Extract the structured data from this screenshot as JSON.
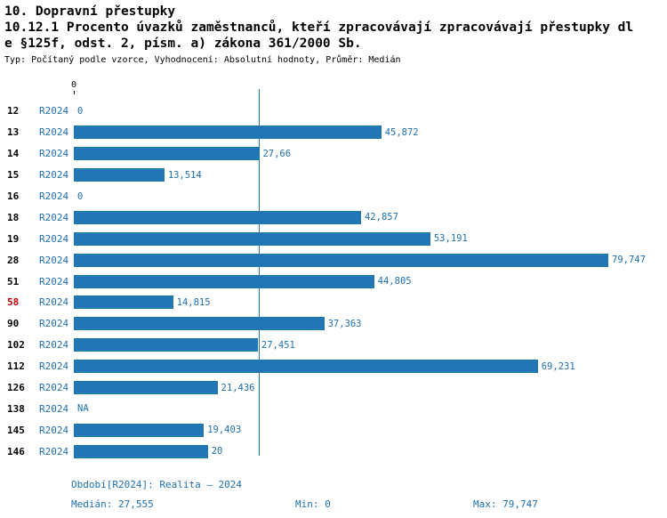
{
  "header": {
    "title": "10. Dopravní přestupky",
    "subtitle_line1": "10.12.1 Procento úvazků zaměstnanců, kteří zpracovávají zpracovávají přestupky dl",
    "subtitle_line2": "e §125f, odst. 2, písm. a) zákona 361/2000 Sb.",
    "meta": "Typ: Počítaný podle vzorce, Vyhodnocení: Absolutní hodnoty, Průměr: Medián"
  },
  "chart_data": {
    "type": "bar",
    "orientation": "horizontal",
    "title": "10.12.1 Procento úvazků zaměstnanců, kteří zpracovávají zpracovávají přestupky dle §125f, odst. 2, písm. a) zákona 361/2000 Sb.",
    "series_name": "R2024",
    "xlim": [
      0,
      79.747
    ],
    "axis_tick": "0",
    "median": 27.555,
    "categories": [
      "12",
      "13",
      "14",
      "15",
      "16",
      "18",
      "19",
      "28",
      "51",
      "58",
      "90",
      "102",
      "112",
      "126",
      "138",
      "145",
      "146"
    ],
    "rows": [
      {
        "id": "12",
        "period": "R2024",
        "value": 0,
        "label": "0",
        "highlight": false
      },
      {
        "id": "13",
        "period": "R2024",
        "value": 45.872,
        "label": "45,872",
        "highlight": false
      },
      {
        "id": "14",
        "period": "R2024",
        "value": 27.66,
        "label": "27,66",
        "highlight": false
      },
      {
        "id": "15",
        "period": "R2024",
        "value": 13.514,
        "label": "13,514",
        "highlight": false
      },
      {
        "id": "16",
        "period": "R2024",
        "value": 0,
        "label": "0",
        "highlight": false
      },
      {
        "id": "18",
        "period": "R2024",
        "value": 42.857,
        "label": "42,857",
        "highlight": false
      },
      {
        "id": "19",
        "period": "R2024",
        "value": 53.191,
        "label": "53,191",
        "highlight": false
      },
      {
        "id": "28",
        "period": "R2024",
        "value": 79.747,
        "label": "79,747",
        "highlight": false
      },
      {
        "id": "51",
        "period": "R2024",
        "value": 44.805,
        "label": "44,805",
        "highlight": false
      },
      {
        "id": "58",
        "period": "R2024",
        "value": 14.815,
        "label": "14,815",
        "highlight": true
      },
      {
        "id": "90",
        "period": "R2024",
        "value": 37.363,
        "label": "37,363",
        "highlight": false
      },
      {
        "id": "102",
        "period": "R2024",
        "value": 27.451,
        "label": "27,451",
        "highlight": false
      },
      {
        "id": "112",
        "period": "R2024",
        "value": 69.231,
        "label": "69,231",
        "highlight": false
      },
      {
        "id": "126",
        "period": "R2024",
        "value": 21.436,
        "label": "21,436",
        "highlight": false
      },
      {
        "id": "138",
        "period": "R2024",
        "value": null,
        "label": "NA",
        "highlight": false
      },
      {
        "id": "145",
        "period": "R2024",
        "value": 19.403,
        "label": "19,403",
        "highlight": false
      },
      {
        "id": "146",
        "period": "R2024",
        "value": 20,
        "label": "20",
        "highlight": false
      }
    ]
  },
  "footer": {
    "period": "Období[R2024]: Realita – 2024",
    "median": "Medián: 27,555",
    "min": "Min: 0",
    "max": "Max: 79,747"
  },
  "colors": {
    "bar": "#2077b4",
    "text_blue": "#1f6fb0",
    "highlight_red": "#c00000",
    "median_line": "#2077b4"
  }
}
